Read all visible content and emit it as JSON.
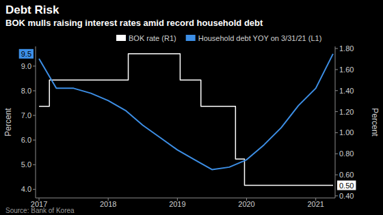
{
  "chart_data": {
    "type": "line",
    "title": "Debt Risk",
    "subtitle": "BOK mulls raising interest rates amid record household debt",
    "source": "Source: Bank of Korea",
    "y_label": "Percent",
    "y2_label": "Percent",
    "xlim": [
      2016.95,
      2021.28
    ],
    "xticks": [
      2017,
      2018,
      2019,
      2020,
      2021
    ],
    "ylim": [
      3.65,
      9.8
    ],
    "yticks": [
      {
        "value": 4,
        "label": "4.0"
      },
      {
        "value": 5,
        "label": "5.0"
      },
      {
        "value": 6,
        "label": "6.0"
      },
      {
        "value": 7,
        "label": "7.0"
      },
      {
        "value": 8,
        "label": "8.0"
      },
      {
        "value": 9,
        "label": "9.0"
      }
    ],
    "y2lim": [
      0.38,
      1.82
    ],
    "y2ticks": [
      {
        "value": 0.4,
        "label": "0.40"
      },
      {
        "value": 0.6,
        "label": "0.60"
      },
      {
        "value": 0.8,
        "label": "0.80"
      },
      {
        "value": 1,
        "label": "1.00"
      },
      {
        "value": 1.2,
        "label": "1.20"
      },
      {
        "value": 1.4,
        "label": "1.40"
      },
      {
        "value": 1.6,
        "label": "1.60"
      },
      {
        "value": 1.8,
        "label": "1.80"
      }
    ],
    "grid": false,
    "legend": "top",
    "series": [
      {
        "name": "BOK rate (R1)",
        "color": "#ffffff",
        "axis": "y2",
        "x": [
          2017.0,
          2017.15,
          2017.15,
          2018.29,
          2018.29,
          2019.04,
          2019.04,
          2019.34,
          2019.34,
          2019.84,
          2019.84,
          2019.97,
          2019.97,
          2021.25
        ],
        "values": [
          1.25,
          1.25,
          1.5,
          1.5,
          1.75,
          1.75,
          1.5,
          1.5,
          1.25,
          1.25,
          0.75,
          0.75,
          0.5,
          0.5
        ]
      },
      {
        "name": "Household debt YOY on 3/31/21 (L1)",
        "color": "#3d8fe6",
        "axis": "y",
        "x": [
          2017.0,
          2017.25,
          2017.5,
          2017.75,
          2018.0,
          2018.25,
          2018.5,
          2018.75,
          2019.0,
          2019.25,
          2019.5,
          2019.75,
          2020.0,
          2020.25,
          2020.5,
          2020.75,
          2021.0,
          2021.25
        ],
        "values": [
          9.3,
          8.1,
          8.1,
          7.9,
          7.6,
          7.2,
          6.6,
          6.1,
          5.6,
          5.2,
          4.8,
          4.9,
          5.2,
          5.8,
          6.5,
          7.4,
          8.1,
          9.5
        ]
      }
    ],
    "annotations": [
      {
        "text": "9.5",
        "y": 9.5,
        "axis": "y"
      },
      {
        "text": "0.50",
        "y": 0.5,
        "axis": "y2"
      }
    ]
  }
}
